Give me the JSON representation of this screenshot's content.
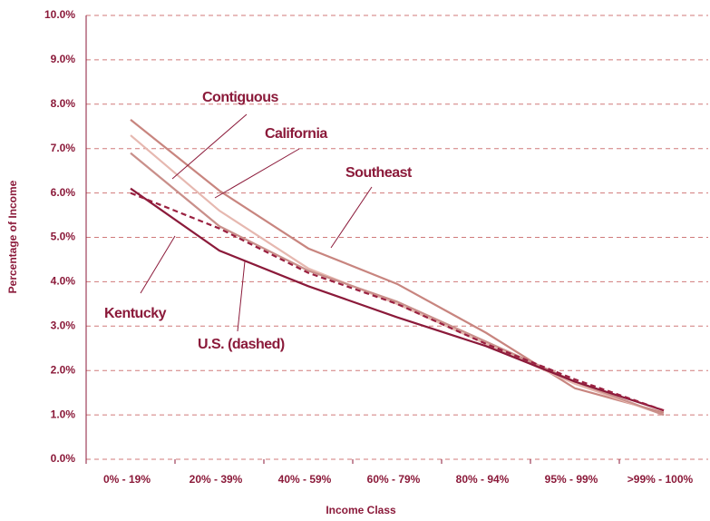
{
  "chart_data": {
    "type": "line",
    "x_label": "Income Class",
    "y_label": "Percentage of Income",
    "categories": [
      "0% - 19%",
      "20% - 39%",
      "40% - 59%",
      "60% - 79%",
      "80% - 94%",
      "95% - 99%",
      ">99% - 100%"
    ],
    "series": [
      {
        "name": "Southeast",
        "color": "#c8857f",
        "values": [
          7.65,
          6.05,
          4.75,
          3.95,
          2.85,
          1.6,
          1.05
        ]
      },
      {
        "name": "California",
        "color": "#e6b8b0",
        "values": [
          7.3,
          5.6,
          4.3,
          3.5,
          2.6,
          1.7,
          1.0
        ]
      },
      {
        "name": "Contiguous",
        "color": "#c98f8a",
        "values": [
          6.9,
          5.25,
          4.25,
          3.55,
          2.65,
          1.75,
          1.0
        ]
      },
      {
        "name": "Kentucky",
        "color": "#8b1a3a",
        "values": [
          6.1,
          4.7,
          3.9,
          3.2,
          2.55,
          1.75,
          1.1
        ]
      },
      {
        "name": "U.S. (dashed)",
        "color": "#9a2040",
        "dashed": true,
        "values": [
          6.0,
          5.2,
          4.2,
          3.5,
          2.6,
          1.8,
          1.1
        ]
      }
    ],
    "ylim": [
      0,
      10
    ],
    "yticks": [
      {
        "value": 0,
        "label": "0.0%"
      },
      {
        "value": 1,
        "label": "1.0%"
      },
      {
        "value": 2,
        "label": "2.0%"
      },
      {
        "value": 3,
        "label": "3.0%"
      },
      {
        "value": 4,
        "label": "4.0%"
      },
      {
        "value": 5,
        "label": "5.0%"
      },
      {
        "value": 6,
        "label": "6.0%"
      },
      {
        "value": 7,
        "label": "7.0%"
      },
      {
        "value": 8,
        "label": "8.0%"
      },
      {
        "value": 9,
        "label": "9.0%"
      },
      {
        "value": 10,
        "label": "10.0%"
      }
    ],
    "grid": true
  }
}
